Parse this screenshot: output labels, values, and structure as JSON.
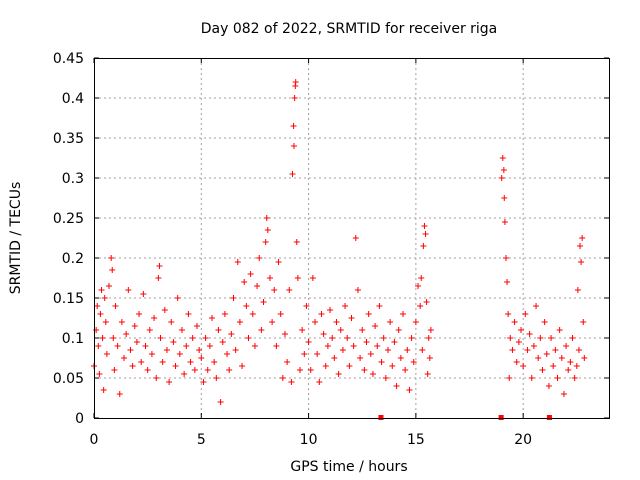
{
  "chart_data": {
    "type": "scatter",
    "title": "Day 082 of 2022, SRMTID for receiver riga",
    "xlabel": "GPS time / hours",
    "ylabel": "SRMTID / TECUs",
    "xlim": [
      0,
      24
    ],
    "ylim": [
      0,
      0.45
    ],
    "x_ticks": [
      "0",
      "5",
      "10",
      "15",
      "20"
    ],
    "y_ticks": [
      "0",
      "0.05",
      "0.1",
      "0.15",
      "0.2",
      "0.25",
      "0.3",
      "0.35",
      "0.4",
      "0.45"
    ],
    "grid": true,
    "marker": "+",
    "color": "#ff0000",
    "series": [
      {
        "name": "",
        "points": [
          [
            0.0,
            0.065
          ],
          [
            0.1,
            0.11
          ],
          [
            0.15,
            0.14
          ],
          [
            0.2,
            0.09
          ],
          [
            0.25,
            0.055
          ],
          [
            0.3,
            0.13
          ],
          [
            0.35,
            0.16
          ],
          [
            0.4,
            0.1
          ],
          [
            0.45,
            0.035
          ],
          [
            0.5,
            0.15
          ],
          [
            0.55,
            0.12
          ],
          [
            0.6,
            0.08
          ],
          [
            0.7,
            0.165
          ],
          [
            0.8,
            0.2
          ],
          [
            0.85,
            0.185
          ],
          [
            0.9,
            0.1
          ],
          [
            0.95,
            0.06
          ],
          [
            1.0,
            0.14
          ],
          [
            1.1,
            0.09
          ],
          [
            1.2,
            0.03
          ],
          [
            1.3,
            0.12
          ],
          [
            1.4,
            0.075
          ],
          [
            1.5,
            0.105
          ],
          [
            1.6,
            0.16
          ],
          [
            1.7,
            0.085
          ],
          [
            1.8,
            0.065
          ],
          [
            1.9,
            0.115
          ],
          [
            2.0,
            0.095
          ],
          [
            2.1,
            0.13
          ],
          [
            2.2,
            0.07
          ],
          [
            2.3,
            0.155
          ],
          [
            2.4,
            0.09
          ],
          [
            2.5,
            0.06
          ],
          [
            2.6,
            0.11
          ],
          [
            2.7,
            0.08
          ],
          [
            2.8,
            0.125
          ],
          [
            2.9,
            0.05
          ],
          [
            3.0,
            0.175
          ],
          [
            3.05,
            0.19
          ],
          [
            3.1,
            0.1
          ],
          [
            3.2,
            0.07
          ],
          [
            3.3,
            0.135
          ],
          [
            3.4,
            0.085
          ],
          [
            3.5,
            0.045
          ],
          [
            3.6,
            0.12
          ],
          [
            3.7,
            0.095
          ],
          [
            3.8,
            0.065
          ],
          [
            3.9,
            0.15
          ],
          [
            4.0,
            0.08
          ],
          [
            4.1,
            0.11
          ],
          [
            4.2,
            0.055
          ],
          [
            4.3,
            0.09
          ],
          [
            4.4,
            0.13
          ],
          [
            4.5,
            0.07
          ],
          [
            4.6,
            0.1
          ],
          [
            4.7,
            0.06
          ],
          [
            4.8,
            0.115
          ],
          [
            4.9,
            0.085
          ],
          [
            5.0,
            0.075
          ],
          [
            5.1,
            0.045
          ],
          [
            5.2,
            0.1
          ],
          [
            5.3,
            0.06
          ],
          [
            5.4,
            0.09
          ],
          [
            5.5,
            0.125
          ],
          [
            5.6,
            0.07
          ],
          [
            5.7,
            0.05
          ],
          [
            5.8,
            0.11
          ],
          [
            5.9,
            0.02
          ],
          [
            6.0,
            0.095
          ],
          [
            6.1,
            0.13
          ],
          [
            6.2,
            0.08
          ],
          [
            6.3,
            0.06
          ],
          [
            6.4,
            0.105
          ],
          [
            6.5,
            0.15
          ],
          [
            6.6,
            0.085
          ],
          [
            6.7,
            0.195
          ],
          [
            6.8,
            0.12
          ],
          [
            6.9,
            0.065
          ],
          [
            7.0,
            0.17
          ],
          [
            7.1,
            0.14
          ],
          [
            7.2,
            0.1
          ],
          [
            7.3,
            0.18
          ],
          [
            7.4,
            0.13
          ],
          [
            7.5,
            0.09
          ],
          [
            7.6,
            0.165
          ],
          [
            7.7,
            0.2
          ],
          [
            7.8,
            0.11
          ],
          [
            7.9,
            0.145
          ],
          [
            8.0,
            0.22
          ],
          [
            8.05,
            0.25
          ],
          [
            8.1,
            0.235
          ],
          [
            8.2,
            0.175
          ],
          [
            8.3,
            0.12
          ],
          [
            8.4,
            0.16
          ],
          [
            8.5,
            0.09
          ],
          [
            8.6,
            0.195
          ],
          [
            8.7,
            0.13
          ],
          [
            8.8,
            0.05
          ],
          [
            8.9,
            0.105
          ],
          [
            9.0,
            0.07
          ],
          [
            9.1,
            0.16
          ],
          [
            9.2,
            0.045
          ],
          [
            9.25,
            0.305
          ],
          [
            9.3,
            0.365
          ],
          [
            9.32,
            0.34
          ],
          [
            9.35,
            0.4
          ],
          [
            9.38,
            0.415
          ],
          [
            9.4,
            0.42
          ],
          [
            9.45,
            0.22
          ],
          [
            9.5,
            0.175
          ],
          [
            9.6,
            0.06
          ],
          [
            9.7,
            0.11
          ],
          [
            9.8,
            0.08
          ],
          [
            9.9,
            0.14
          ],
          [
            10.0,
            0.095
          ],
          [
            10.1,
            0.06
          ],
          [
            10.2,
            0.175
          ],
          [
            10.3,
            0.12
          ],
          [
            10.4,
            0.08
          ],
          [
            10.5,
            0.045
          ],
          [
            10.6,
            0.13
          ],
          [
            10.7,
            0.105
          ],
          [
            10.8,
            0.065
          ],
          [
            10.9,
            0.09
          ],
          [
            11.0,
            0.135
          ],
          [
            11.1,
            0.1
          ],
          [
            11.2,
            0.075
          ],
          [
            11.3,
            0.12
          ],
          [
            11.4,
            0.055
          ],
          [
            11.5,
            0.11
          ],
          [
            11.6,
            0.085
          ],
          [
            11.7,
            0.14
          ],
          [
            11.8,
            0.1
          ],
          [
            11.9,
            0.065
          ],
          [
            12.0,
            0.125
          ],
          [
            12.1,
            0.09
          ],
          [
            12.2,
            0.225
          ],
          [
            12.3,
            0.16
          ],
          [
            12.4,
            0.075
          ],
          [
            12.5,
            0.11
          ],
          [
            12.6,
            0.06
          ],
          [
            12.7,
            0.095
          ],
          [
            12.8,
            0.13
          ],
          [
            12.9,
            0.08
          ],
          [
            13.0,
            0.055
          ],
          [
            13.1,
            0.115
          ],
          [
            13.2,
            0.09
          ],
          [
            13.3,
            0.14
          ],
          [
            13.4,
            0.07
          ],
          [
            13.5,
            0.1
          ],
          [
            13.6,
            0.05
          ],
          [
            13.7,
            0.085
          ],
          [
            13.8,
            0.12
          ],
          [
            13.9,
            0.065
          ],
          [
            14.0,
            0.095
          ],
          [
            14.1,
            0.04
          ],
          [
            14.2,
            0.11
          ],
          [
            14.3,
            0.075
          ],
          [
            14.4,
            0.13
          ],
          [
            14.5,
            0.06
          ],
          [
            14.6,
            0.085
          ],
          [
            14.7,
            0.035
          ],
          [
            14.8,
            0.1
          ],
          [
            14.9,
            0.07
          ],
          [
            15.0,
            0.12
          ],
          [
            15.1,
            0.165
          ],
          [
            15.2,
            0.14
          ],
          [
            15.25,
            0.175
          ],
          [
            15.3,
            0.085
          ],
          [
            15.35,
            0.215
          ],
          [
            15.4,
            0.24
          ],
          [
            15.45,
            0.23
          ],
          [
            15.5,
            0.145
          ],
          [
            15.55,
            0.055
          ],
          [
            15.6,
            0.1
          ],
          [
            15.65,
            0.075
          ],
          [
            15.7,
            0.11
          ],
          [
            19.0,
            0.3
          ],
          [
            19.05,
            0.325
          ],
          [
            19.1,
            0.31
          ],
          [
            19.12,
            0.275
          ],
          [
            19.15,
            0.245
          ],
          [
            19.2,
            0.2
          ],
          [
            19.25,
            0.17
          ],
          [
            19.3,
            0.13
          ],
          [
            19.35,
            0.05
          ],
          [
            19.4,
            0.1
          ],
          [
            19.5,
            0.085
          ],
          [
            19.6,
            0.12
          ],
          [
            19.7,
            0.07
          ],
          [
            19.8,
            0.095
          ],
          [
            19.9,
            0.11
          ],
          [
            20.0,
            0.065
          ],
          [
            20.1,
            0.13
          ],
          [
            20.2,
            0.085
          ],
          [
            20.3,
            0.105
          ],
          [
            20.4,
            0.05
          ],
          [
            20.5,
            0.09
          ],
          [
            20.6,
            0.14
          ],
          [
            20.7,
            0.075
          ],
          [
            20.8,
            0.1
          ],
          [
            20.9,
            0.06
          ],
          [
            21.0,
            0.12
          ],
          [
            21.1,
            0.08
          ],
          [
            21.2,
            0.04
          ],
          [
            21.3,
            0.1
          ],
          [
            21.4,
            0.065
          ],
          [
            21.5,
            0.085
          ],
          [
            21.6,
            0.05
          ],
          [
            21.7,
            0.11
          ],
          [
            21.8,
            0.075
          ],
          [
            21.9,
            0.03
          ],
          [
            22.0,
            0.09
          ],
          [
            22.1,
            0.06
          ],
          [
            22.2,
            0.07
          ],
          [
            22.3,
            0.1
          ],
          [
            22.4,
            0.05
          ],
          [
            22.5,
            0.065
          ],
          [
            22.55,
            0.16
          ],
          [
            22.6,
            0.085
          ],
          [
            22.65,
            0.215
          ],
          [
            22.7,
            0.195
          ],
          [
            22.75,
            0.225
          ],
          [
            22.8,
            0.12
          ],
          [
            22.85,
            0.075
          ]
        ]
      }
    ],
    "gap_marks_x": [
      13.35,
      18.95,
      21.2
    ]
  }
}
